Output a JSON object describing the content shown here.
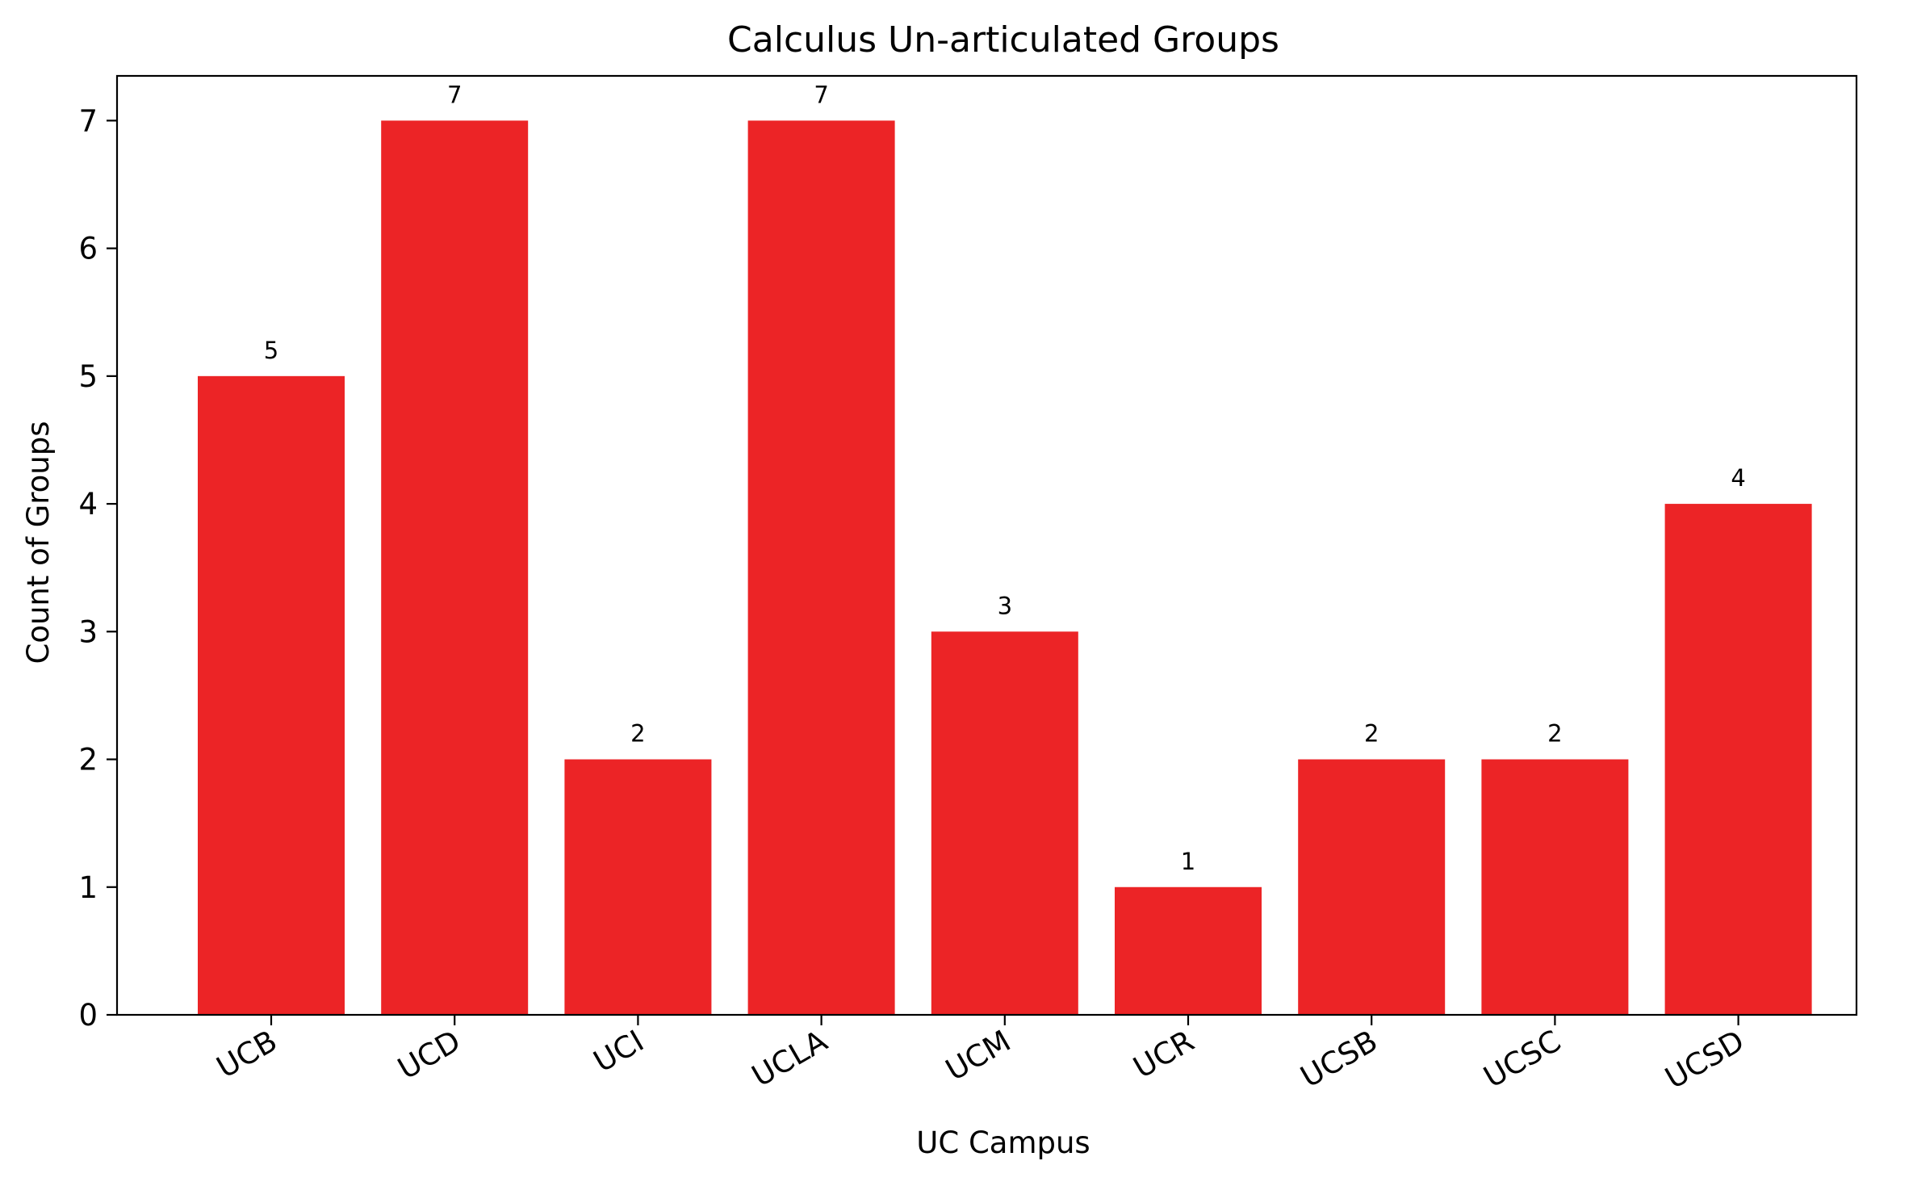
{
  "chart_data": {
    "type": "bar",
    "title": "Calculus  Un-articulated Groups",
    "xlabel": "UC Campus",
    "ylabel": "Count of Groups",
    "categories": [
      "UCB",
      "UCD",
      "UCI",
      "UCLA",
      "UCM",
      "UCR",
      "UCSB",
      "UCSC",
      "UCSD"
    ],
    "values": [
      5,
      7,
      2,
      7,
      3,
      1,
      2,
      2,
      4
    ],
    "data_labels": [
      "5",
      "7",
      "2",
      "7",
      "3",
      "1",
      "2",
      "2",
      "4"
    ],
    "yticks": [
      0,
      1,
      2,
      3,
      4,
      5,
      6,
      7
    ],
    "ylim": [
      0,
      7.35
    ],
    "bar_color": "#ec2426",
    "grid": false,
    "legend": "none"
  }
}
